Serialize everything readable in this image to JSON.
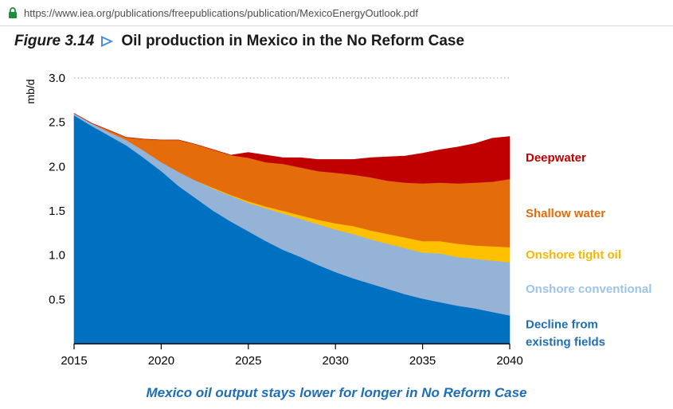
{
  "browser": {
    "url": "https://www.iea.org/publications/freepublications/publication/MexicoEnergyOutlook.pdf"
  },
  "figure": {
    "number": "Figure 3.14",
    "title": "Oil production in Mexico in the No Reform Case",
    "caption": "Mexico oil output stays lower for longer in No Reform Case"
  },
  "chart_data": {
    "type": "area",
    "stacked": true,
    "ylabel": "mb/d",
    "xlim": [
      2015,
      2040
    ],
    "ylim": [
      0,
      3.0
    ],
    "x_ticks": [
      "2015",
      "2020",
      "2025",
      "2030",
      "2035",
      "2040"
    ],
    "y_ticks": [
      "0.5",
      "1.0",
      "1.5",
      "2.0",
      "2.5",
      "3.0"
    ],
    "grid": "dotted line at 3.0 only",
    "legend": "labels at right end of each area",
    "x": [
      2015,
      2016,
      2017,
      2018,
      2019,
      2020,
      2021,
      2022,
      2023,
      2024,
      2025,
      2026,
      2027,
      2028,
      2029,
      2030,
      2031,
      2032,
      2033,
      2034,
      2035,
      2036,
      2037,
      2038,
      2039,
      2040
    ],
    "series": [
      {
        "name": "Decline from existing fields",
        "label_lines": [
          "Decline from",
          "existing fields"
        ],
        "color": "#0070c0",
        "label_color": "#1f6db5",
        "values": [
          2.58,
          2.46,
          2.35,
          2.24,
          2.1,
          1.95,
          1.78,
          1.64,
          1.5,
          1.38,
          1.27,
          1.16,
          1.06,
          0.98,
          0.89,
          0.81,
          0.74,
          0.68,
          0.62,
          0.56,
          0.51,
          0.47,
          0.43,
          0.4,
          0.36,
          0.32
        ]
      },
      {
        "name": "Onshore conventional",
        "label_lines": [
          "Onshore conventional"
        ],
        "color": "#95b3d7",
        "label_color": "#9dc3e6",
        "values": [
          0.02,
          0.03,
          0.04,
          0.06,
          0.08,
          0.1,
          0.16,
          0.2,
          0.25,
          0.29,
          0.32,
          0.37,
          0.41,
          0.43,
          0.46,
          0.48,
          0.5,
          0.5,
          0.51,
          0.52,
          0.52,
          0.55,
          0.55,
          0.56,
          0.58,
          0.6
        ]
      },
      {
        "name": "Onshore tight oil",
        "label_lines": [
          "Onshore tight oil"
        ],
        "color": "#ffc000",
        "label_color": "#f5b800",
        "values": [
          0.0,
          0.0,
          0.0,
          0.0,
          0.0,
          0.0,
          0.0,
          0.0,
          0.01,
          0.01,
          0.02,
          0.02,
          0.03,
          0.04,
          0.05,
          0.07,
          0.09,
          0.1,
          0.11,
          0.12,
          0.13,
          0.14,
          0.15,
          0.15,
          0.16,
          0.17
        ]
      },
      {
        "name": "Shallow water",
        "label_lines": [
          "Shallow water"
        ],
        "color": "#e46c0a",
        "label_color": "#e46c0a",
        "values": [
          0.0,
          0.0,
          0.02,
          0.03,
          0.13,
          0.25,
          0.36,
          0.41,
          0.43,
          0.45,
          0.49,
          0.5,
          0.53,
          0.54,
          0.55,
          0.57,
          0.58,
          0.6,
          0.6,
          0.62,
          0.65,
          0.66,
          0.68,
          0.71,
          0.73,
          0.77
        ]
      },
      {
        "name": "Deepwater",
        "label_lines": [
          "Deepwater"
        ],
        "color": "#c00000",
        "label_color": "#c00000",
        "values": [
          0.0,
          0.0,
          0.0,
          0.0,
          0.0,
          0.0,
          0.0,
          0.0,
          0.0,
          0.0,
          0.06,
          0.08,
          0.07,
          0.11,
          0.13,
          0.15,
          0.17,
          0.22,
          0.27,
          0.3,
          0.34,
          0.37,
          0.41,
          0.44,
          0.49,
          0.48
        ]
      }
    ]
  }
}
